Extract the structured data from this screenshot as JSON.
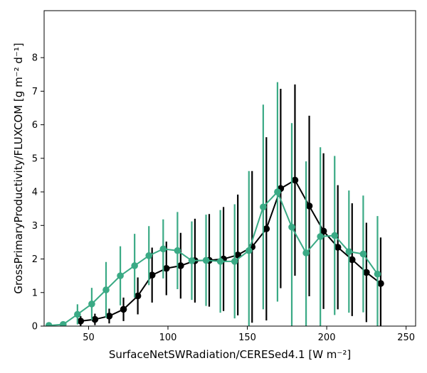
{
  "chart_data": {
    "type": "line",
    "xlabel": "SurfaceNetSWRadiation/CERESed4.1 [W m⁻²]",
    "ylabel": "GrossPrimaryProductivity/FLUXCOM [g m⁻² d⁻¹]",
    "xlim": [
      22,
      256
    ],
    "ylim": [
      0,
      9.4
    ],
    "xticks": [
      50,
      100,
      150,
      200,
      250
    ],
    "yticks": [
      0,
      1,
      2,
      3,
      4,
      5,
      6,
      7,
      8
    ],
    "grid": false,
    "series": [
      {
        "color": "#000000",
        "points": [
          {
            "x": 45,
            "y": 0.15,
            "err": 0.15
          },
          {
            "x": 54,
            "y": 0.2,
            "err": 0.17
          },
          {
            "x": 63,
            "y": 0.3,
            "err": 0.22
          },
          {
            "x": 72,
            "y": 0.5,
            "err": 0.35
          },
          {
            "x": 81,
            "y": 0.9,
            "err": 0.55
          },
          {
            "x": 90,
            "y": 1.52,
            "err": 0.82
          },
          {
            "x": 99,
            "y": 1.72,
            "err": 0.8
          },
          {
            "x": 108,
            "y": 1.8,
            "err": 0.98
          },
          {
            "x": 117,
            "y": 1.95,
            "err": 1.25
          },
          {
            "x": 126,
            "y": 1.96,
            "err": 1.38
          },
          {
            "x": 135,
            "y": 2.0,
            "err": 1.55
          },
          {
            "x": 144,
            "y": 2.12,
            "err": 1.8
          },
          {
            "x": 153,
            "y": 2.36,
            "err": 2.26
          },
          {
            "x": 162,
            "y": 2.9,
            "err": 2.73
          },
          {
            "x": 171,
            "y": 4.1,
            "err": 2.97
          },
          {
            "x": 180,
            "y": 4.35,
            "err": 2.85
          },
          {
            "x": 189,
            "y": 3.58,
            "err": 2.69
          },
          {
            "x": 198,
            "y": 2.83,
            "err": 2.32
          },
          {
            "x": 207,
            "y": 2.35,
            "err": 1.85
          },
          {
            "x": 216,
            "y": 1.98,
            "err": 1.68
          },
          {
            "x": 225,
            "y": 1.6,
            "err": 1.48
          },
          {
            "x": 234,
            "y": 1.27,
            "err": 1.37
          }
        ]
      },
      {
        "color": "#3aaa85",
        "points": [
          {
            "x": 25,
            "y": 0.02,
            "err": 0.02
          },
          {
            "x": 34,
            "y": 0.05,
            "err": 0.06
          },
          {
            "x": 43,
            "y": 0.35,
            "err": 0.3
          },
          {
            "x": 52,
            "y": 0.66,
            "err": 0.48
          },
          {
            "x": 61,
            "y": 1.08,
            "err": 0.83
          },
          {
            "x": 70,
            "y": 1.5,
            "err": 0.88
          },
          {
            "x": 79,
            "y": 1.8,
            "err": 0.95
          },
          {
            "x": 88,
            "y": 2.1,
            "err": 0.88
          },
          {
            "x": 97,
            "y": 2.3,
            "err": 0.88
          },
          {
            "x": 106,
            "y": 2.25,
            "err": 1.15
          },
          {
            "x": 115,
            "y": 1.95,
            "err": 1.17
          },
          {
            "x": 124,
            "y": 1.96,
            "err": 1.36
          },
          {
            "x": 133,
            "y": 1.93,
            "err": 1.53
          },
          {
            "x": 142,
            "y": 1.93,
            "err": 1.7
          },
          {
            "x": 151,
            "y": 2.25,
            "err": 2.37
          },
          {
            "x": 160,
            "y": 3.55,
            "err": 3.05
          },
          {
            "x": 169,
            "y": 4.0,
            "err": 3.27
          },
          {
            "x": 178,
            "y": 2.95,
            "err": 3.1
          },
          {
            "x": 187,
            "y": 2.18,
            "err": 2.73
          },
          {
            "x": 196,
            "y": 2.67,
            "err": 2.66
          },
          {
            "x": 205,
            "y": 2.7,
            "err": 2.37
          },
          {
            "x": 214,
            "y": 2.22,
            "err": 1.82
          },
          {
            "x": 223,
            "y": 2.15,
            "err": 1.74
          },
          {
            "x": 232,
            "y": 1.55,
            "err": 1.73
          }
        ]
      }
    ]
  }
}
